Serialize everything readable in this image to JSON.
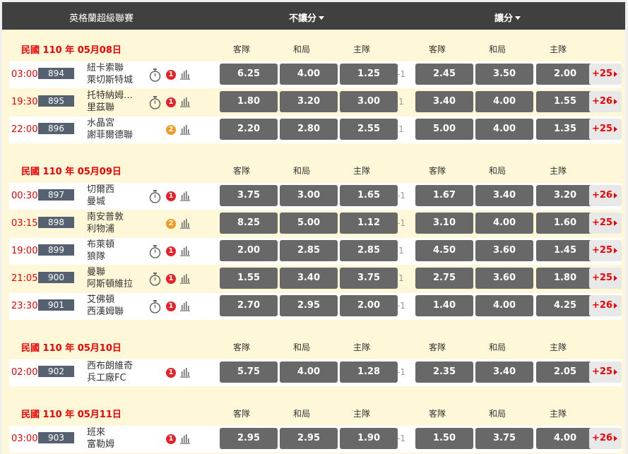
{
  "header": {
    "league": "英格蘭超級聯賽",
    "no_handicap": "不讓分",
    "handicap": "讓分"
  },
  "column_headers": [
    "客隊",
    "和局",
    "主隊",
    "客隊",
    "和局",
    "主隊"
  ],
  "colors": {
    "accent": "#ee0000",
    "header_bg": "#404040",
    "odds_bg": "#686868",
    "badge1": "#e8202a",
    "badge2": "#f39a1e"
  },
  "sections": [
    {
      "date": "民國 110 年 05月08日",
      "matches": [
        {
          "time": "03:00",
          "id": "894",
          "away": "紐卡索聯",
          "home": "萊切斯特城",
          "timer": true,
          "badge": "1",
          "odds": [
            "6.25",
            "4.00",
            "1.25"
          ],
          "handicap": "-1",
          "hodds": [
            "2.45",
            "3.50",
            "2.00"
          ],
          "more": "+25"
        },
        {
          "time": "19:30",
          "id": "895",
          "away": "托特納姆…",
          "home": "里茲聯",
          "timer": true,
          "badge": "1",
          "odds": [
            "1.80",
            "3.20",
            "3.00"
          ],
          "handicap": "1",
          "hodds": [
            "3.40",
            "4.00",
            "1.55"
          ],
          "more": "+26"
        },
        {
          "time": "22:00",
          "id": "896",
          "away": "水晶宮",
          "home": "謝菲爾德聯",
          "timer": false,
          "badge": "2",
          "odds": [
            "2.20",
            "2.80",
            "2.55"
          ],
          "handicap": "1",
          "hodds": [
            "5.00",
            "4.00",
            "1.35"
          ],
          "more": "+25"
        }
      ]
    },
    {
      "date": "民國 110 年 05月09日",
      "matches": [
        {
          "time": "00:30",
          "id": "897",
          "away": "切爾西",
          "home": "曼城",
          "timer": true,
          "badge": "1",
          "odds": [
            "3.75",
            "3.00",
            "1.65"
          ],
          "handicap": "-1",
          "hodds": [
            "1.67",
            "3.40",
            "3.20"
          ],
          "more": "+26"
        },
        {
          "time": "03:15",
          "id": "898",
          "away": "南安普敦",
          "home": "利物浦",
          "timer": false,
          "badge": "2",
          "odds": [
            "8.25",
            "5.00",
            "1.12"
          ],
          "handicap": "-1",
          "hodds": [
            "3.10",
            "4.00",
            "1.60"
          ],
          "more": "+25"
        },
        {
          "time": "19:00",
          "id": "899",
          "away": "布萊頓",
          "home": "狼隊",
          "timer": true,
          "badge": "1",
          "odds": [
            "2.00",
            "2.85",
            "2.85"
          ],
          "handicap": "1",
          "hodds": [
            "4.50",
            "3.60",
            "1.45"
          ],
          "more": "+25"
        },
        {
          "time": "21:05",
          "id": "900",
          "away": "曼聯",
          "home": "阿斯頓維拉",
          "timer": true,
          "badge": "1",
          "odds": [
            "1.55",
            "3.40",
            "3.75"
          ],
          "handicap": "1",
          "hodds": [
            "2.75",
            "3.60",
            "1.80"
          ],
          "more": "+25"
        },
        {
          "time": "23:30",
          "id": "901",
          "away": "艾佛頓",
          "home": "西漢姆聯",
          "timer": true,
          "badge": "1",
          "odds": [
            "2.70",
            "2.95",
            "2.00"
          ],
          "handicap": "-1",
          "hodds": [
            "1.40",
            "4.00",
            "4.25"
          ],
          "more": "+26"
        }
      ]
    },
    {
      "date": "民國 110 年 05月10日",
      "matches": [
        {
          "time": "02:00",
          "id": "902",
          "away": "西布朗維奇",
          "home": "兵工廠FC",
          "timer": false,
          "badge": "1",
          "odds": [
            "5.75",
            "4.00",
            "1.28"
          ],
          "handicap": "-1",
          "hodds": [
            "2.35",
            "3.40",
            "2.05"
          ],
          "more": "+25"
        }
      ]
    },
    {
      "date": "民國 110 年 05月11日",
      "matches": [
        {
          "time": "03:00",
          "id": "903",
          "away": "班來",
          "home": "富勒姆",
          "timer": false,
          "badge": "1",
          "odds": [
            "2.95",
            "2.95",
            "1.90"
          ],
          "handicap": "-1",
          "hodds": [
            "1.50",
            "3.75",
            "4.00"
          ],
          "more": "+26"
        }
      ]
    }
  ]
}
